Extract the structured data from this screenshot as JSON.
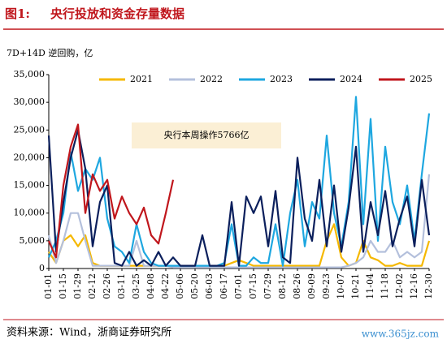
{
  "figure_label": "图1:",
  "title": "央行投放和资金存量数据",
  "source": "资料来源：Wind，浙商证券研究所",
  "watermark": "www.365jz.com",
  "chart_data": {
    "type": "line",
    "subtitle": "7D+14D 逆回购，亿",
    "annotation": "央行本周操作5766亿",
    "categories": [
      "01-01",
      null,
      "01-15",
      null,
      "01-29",
      null,
      "02-12",
      null,
      "02-26",
      null,
      "03-11",
      null,
      "03-25",
      null,
      "04-08",
      null,
      "04-22",
      null,
      "05-06",
      null,
      "05-20",
      null,
      "06-03",
      null,
      "06-17",
      null,
      "07-01",
      null,
      "07-15",
      null,
      "07-29",
      null,
      "08-12",
      null,
      "08-26",
      null,
      "09-09",
      null,
      "09-23",
      null,
      "10-07",
      null,
      "10-21",
      null,
      "11-04",
      null,
      "11-18",
      null,
      "12-02",
      null,
      "12-16",
      null,
      "12-30"
    ],
    "ylim": [
      0,
      35000
    ],
    "yticks": [
      0,
      {
        "value": 5000,
        "label": "5,000"
      },
      {
        "value": 10000,
        "label": "10,000"
      },
      {
        "value": 15000,
        "label": "15,000"
      },
      {
        "value": 20000,
        "label": "20,000"
      },
      {
        "value": 25000,
        "label": "25,000"
      },
      {
        "value": 30000,
        "label": "30,000"
      },
      {
        "value": 35000,
        "label": "35,000"
      }
    ],
    "legend": "top",
    "series": [
      {
        "name": "2021",
        "color": "#f5b800",
        "values": [
          3000,
          1000,
          5000,
          6000,
          4000,
          6000,
          1000,
          500,
          500,
          500,
          500,
          500,
          500,
          500,
          500,
          500,
          500,
          500,
          500,
          500,
          500,
          500,
          500,
          500,
          500,
          1000,
          1500,
          1000,
          500,
          500,
          500,
          500,
          500,
          500,
          500,
          500,
          500,
          500,
          5000,
          8000,
          2000,
          500,
          1000,
          5000,
          2000,
          1500,
          500,
          500,
          1000,
          500,
          500,
          500,
          5000
        ]
      },
      {
        "name": "2022",
        "color": "#b4c0dc",
        "values": [
          6000,
          1000,
          5000,
          10000,
          10000,
          5000,
          500,
          500,
          500,
          500,
          500,
          500,
          5000,
          500,
          500,
          500,
          500,
          200,
          200,
          200,
          200,
          200,
          200,
          200,
          200,
          200,
          200,
          200,
          200,
          200,
          200,
          200,
          200,
          200,
          200,
          200,
          200,
          200,
          200,
          200,
          200,
          500,
          1000,
          2000,
          5000,
          3000,
          3000,
          5000,
          2000,
          3000,
          2000,
          3000,
          17000
        ]
      },
      {
        "name": "2023",
        "color": "#1ea7e0",
        "values": [
          2000,
          5000,
          10000,
          21000,
          14000,
          18000,
          16000,
          20000,
          9000,
          4000,
          3000,
          1000,
          8000,
          3000,
          1000,
          500,
          500,
          500,
          500,
          500,
          500,
          500,
          500,
          500,
          1000,
          8000,
          500,
          500,
          2000,
          1000,
          1000,
          8000,
          500,
          10000,
          16000,
          4000,
          12000,
          9000,
          24000,
          10000,
          4000,
          12000,
          31000,
          8000,
          27000,
          5000,
          22000,
          12000,
          8000,
          15000,
          5000,
          17000,
          28000
        ]
      },
      {
        "name": "2024",
        "color": "#0b1f5c",
        "values": [
          24000,
          3000,
          12000,
          20000,
          25000,
          18000,
          4000,
          12000,
          15000,
          1000,
          500,
          3000,
          500,
          1500,
          500,
          3000,
          500,
          2000,
          500,
          500,
          500,
          6000,
          500,
          500,
          500,
          12000,
          500,
          13000,
          10000,
          13000,
          4000,
          14000,
          2000,
          1000,
          20000,
          9000,
          5000,
          16000,
          4000,
          15000,
          3000,
          11000,
          22000,
          3000,
          12000,
          6000,
          14000,
          4000,
          9000,
          13000,
          4000,
          16000,
          6000
        ]
      },
      {
        "name": "2025",
        "color": "#c0161c",
        "values": [
          5000,
          2000,
          15000,
          22000,
          26000,
          10000,
          17000,
          14000,
          16000,
          9000,
          13000,
          10000,
          8000,
          11000,
          6000,
          4500,
          10000,
          16000,
          null,
          null,
          null,
          null,
          null,
          null,
          null,
          null,
          null,
          null,
          null,
          null,
          null,
          null,
          null,
          null,
          null,
          null,
          null,
          null,
          null,
          null,
          null,
          null,
          null,
          null,
          null,
          null,
          null,
          null,
          null,
          null,
          null,
          null,
          null
        ]
      }
    ]
  }
}
